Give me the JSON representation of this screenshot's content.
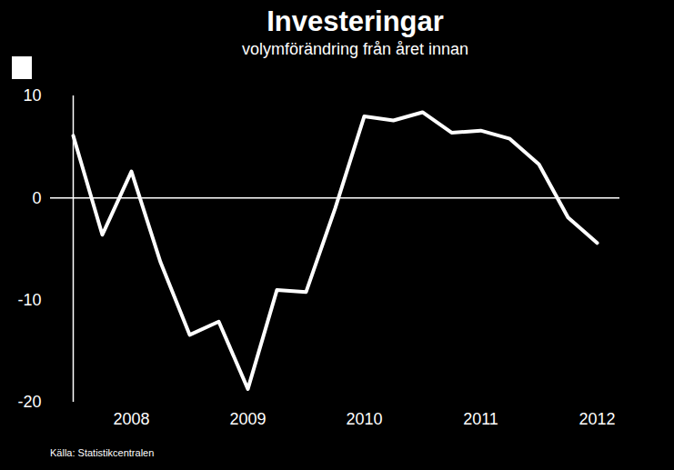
{
  "chart_data": {
    "type": "line",
    "title": "Investeringar",
    "subtitle": "volymförändring från året innan",
    "source": "Källa: Statistikcentralen",
    "categories": [
      null,
      null,
      "2008",
      null,
      null,
      null,
      "2009",
      null,
      null,
      null,
      "2010",
      null,
      null,
      null,
      "2011",
      null,
      null,
      null,
      "2012"
    ],
    "values": [
      6.1,
      -3.6,
      2.6,
      -6.3,
      -13.4,
      -12.1,
      -18.7,
      -9.0,
      -9.2,
      -1.0,
      8.0,
      7.6,
      8.4,
      6.4,
      6.6,
      5.8,
      3.3,
      -1.9,
      -4.4
    ],
    "color": "#ffffff",
    "ylim": [
      -20,
      10
    ],
    "yticks": [
      -20,
      -10,
      0,
      10
    ]
  }
}
